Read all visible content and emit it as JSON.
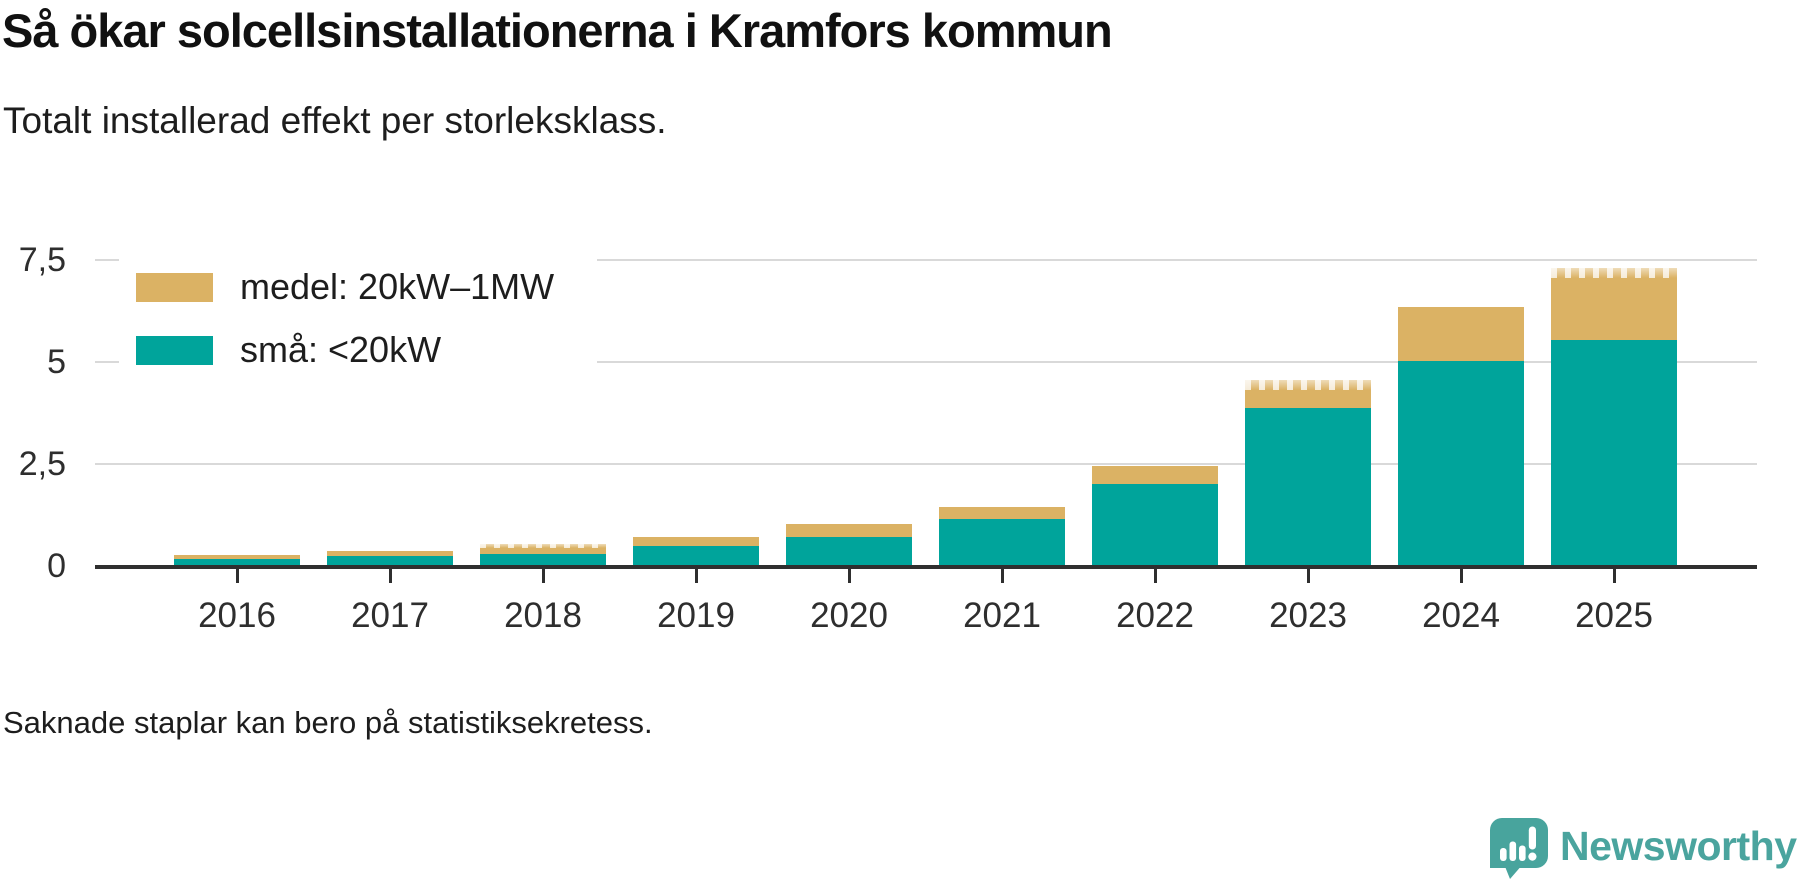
{
  "title": "Så ökar solcellsinstallationerna i Kramfors kommun",
  "subtitle": "Totalt installerad effekt per storleksklass.",
  "footnote": "Saknade staplar kan bero på statistiksekretess.",
  "brand": {
    "name": "Newsworthy",
    "color": "#4aa49e"
  },
  "colors": {
    "small_series": "#00a49b",
    "medium_series": "#dbb264",
    "grid": "#d9d9d9",
    "axis": "#2f2f2f",
    "text": "#2e2e2e"
  },
  "chart_data": {
    "type": "bar",
    "stacked": true,
    "title": "Så ökar solcellsinstallationerna i Kramfors kommun",
    "subtitle": "Totalt installerad effekt per storleksklass.",
    "categories": [
      "2016",
      "2017",
      "2018",
      "2019",
      "2020",
      "2021",
      "2022",
      "2023",
      "2024",
      "2025"
    ],
    "series": [
      {
        "name": "medel: 20kW–1MW",
        "color": "#dbb264",
        "stack_position": "top",
        "values": [
          0.11,
          0.13,
          0.25,
          0.23,
          0.3,
          0.29,
          0.45,
          0.67,
          1.34,
          1.75
        ]
      },
      {
        "name": "små: <20kW",
        "color": "#00a49b",
        "stack_position": "bottom",
        "values": [
          0.17,
          0.24,
          0.3,
          0.48,
          0.72,
          1.15,
          2.0,
          3.88,
          5.02,
          5.55
        ]
      }
    ],
    "totals": [
      0.28,
      0.37,
      0.55,
      0.71,
      1.02,
      1.44,
      2.45,
      4.55,
      6.36,
      7.3
    ],
    "hatched_top_categories": [
      "2018",
      "2023",
      "2025"
    ],
    "ylim": [
      0,
      7.5
    ],
    "yticks": [
      {
        "value": 0,
        "label": "0"
      },
      {
        "value": 2.5,
        "label": "2,5"
      },
      {
        "value": 5,
        "label": "5"
      },
      {
        "value": 7.5,
        "label": "7,5"
      }
    ],
    "xlabel": "",
    "ylabel": "",
    "grid": "horizontal",
    "legend_position": "top-left"
  }
}
